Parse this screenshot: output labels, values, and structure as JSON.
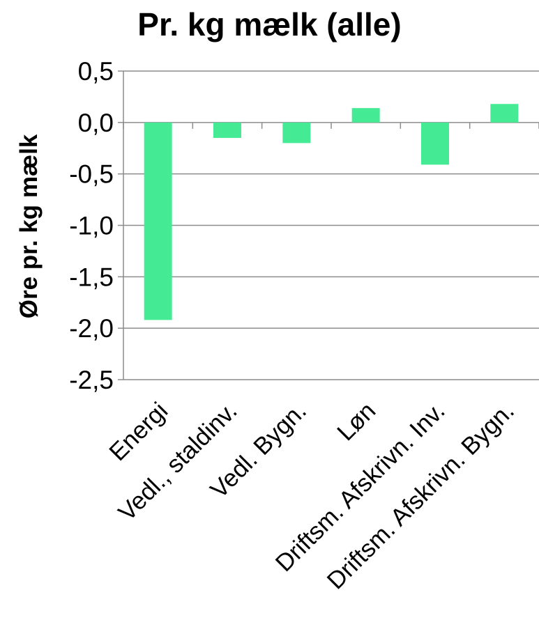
{
  "chart_data": {
    "type": "bar",
    "title": "Pr. kg mælk (alle)",
    "xlabel": "",
    "ylabel": "Øre pr. kg mælk",
    "categories": [
      "Energi",
      "Vedl., staldinv.",
      "Vedl. Bygn.",
      "Løn",
      "Driftsm. Afskrivn. Inv.",
      "Driftsm. Afskrivn. Bygn."
    ],
    "values": [
      -1.92,
      -0.15,
      -0.2,
      0.14,
      -0.41,
      0.18
    ],
    "ylim": [
      -2.5,
      0.5
    ],
    "yticks": [
      "0,5",
      "0,0",
      "-0,5",
      "-1,0",
      "-1,5",
      "-2,0",
      "-2,5"
    ],
    "grid": true,
    "legend": "none",
    "bar_color": "#45ea94"
  }
}
